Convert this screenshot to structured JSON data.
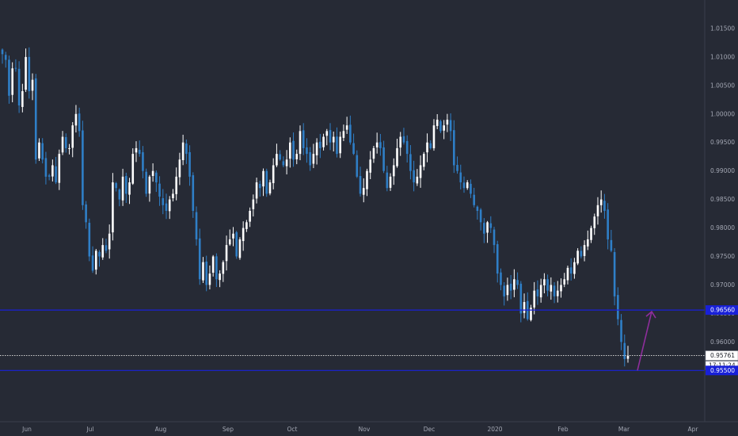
{
  "colors": {
    "background": "#262a35",
    "axis_text": "#a3a7b3",
    "candle_up": "#ffffff",
    "candle_down": "#2f7fc7",
    "level_line": "#1820d8",
    "level_label_bg": "#1820d8",
    "last_price_line": "#d0d0d0",
    "arrow": "#8e2e9c"
  },
  "chart_data": {
    "type": "candlestick",
    "title": "",
    "xlabel": "",
    "ylabel": "",
    "ylim": [
      0.946,
      1.02
    ],
    "y_ticks": [
      "0.95500",
      "0.96000",
      "0.96500",
      "0.97000",
      "0.97500",
      "0.98000",
      "0.98500",
      "0.99000",
      "0.99500",
      "1.00000",
      "1.00500",
      "1.01000",
      "1.01500"
    ],
    "x_ticks": [
      "Jun",
      "Jul",
      "Aug",
      "Sep",
      "Oct",
      "Nov",
      "Dec",
      "2020",
      "Feb",
      "Mar",
      "Apr"
    ],
    "grid": false,
    "series": [
      {
        "close_path": [
          1.0105,
          1.0095,
          1.0032,
          1.008,
          1.008,
          1.0015,
          1.004,
          1.01,
          1.004,
          1.006,
          0.992,
          0.995,
          0.992,
          0.989,
          0.989,
          0.991,
          0.988,
          0.993,
          0.996,
          0.994,
          0.994,
          0.998,
          1.0,
          0.997,
          0.984,
          0.981,
          0.975,
          0.9725,
          0.976,
          0.975,
          0.977,
          0.976,
          0.979,
          0.988,
          0.987,
          0.985,
          0.989,
          0.986,
          0.988,
          0.993,
          0.994,
          0.993,
          0.99,
          0.986,
          0.989,
          0.99,
          0.988,
          0.9855,
          0.984,
          0.983,
          0.985,
          0.986,
          0.989,
          0.992,
          0.995,
          0.993,
          0.989,
          0.983,
          0.978,
          0.971,
          0.974,
          0.97,
          0.972,
          0.975,
          0.971,
          0.972,
          0.974,
          0.977,
          0.978,
          0.979,
          0.975,
          0.978,
          0.98,
          0.981,
          0.983,
          0.985,
          0.988,
          0.987,
          0.99,
          0.986,
          0.988,
          0.991,
          0.993,
          0.992,
          0.991,
          0.992,
          0.995,
          0.992,
          0.993,
          0.997,
          0.994,
          0.993,
          0.991,
          0.993,
          0.995,
          0.994,
          0.996,
          0.997,
          0.995,
          0.996,
          0.993,
          0.996,
          0.997,
          0.998,
          0.995,
          0.993,
          0.989,
          0.986,
          0.987,
          0.99,
          0.992,
          0.994,
          0.995,
          0.994,
          0.99,
          0.987,
          0.989,
          0.991,
          0.994,
          0.996,
          0.995,
          0.993,
          0.99,
          0.988,
          0.989,
          0.991,
          0.993,
          0.995,
          0.994,
          0.998,
          0.999,
          0.997,
          0.998,
          0.999,
          0.997,
          0.991,
          0.99,
          0.988,
          0.987,
          0.988,
          0.986,
          0.984,
          0.983,
          0.981,
          0.979,
          0.981,
          0.98,
          0.977,
          0.972,
          0.97,
          0.968,
          0.97,
          0.969,
          0.971,
          0.97,
          0.965,
          0.967,
          0.964,
          0.966,
          0.969,
          0.968,
          0.97,
          0.971,
          0.969,
          0.97,
          0.968,
          0.969,
          0.97,
          0.971,
          0.973,
          0.972,
          0.974,
          0.976,
          0.975,
          0.977,
          0.978,
          0.98,
          0.982,
          0.984,
          0.985,
          0.983,
          0.978,
          0.976,
          0.968,
          0.964,
          0.96,
          0.957,
          0.9576
        ]
      }
    ],
    "levels": [
      0.9656,
      0.955
    ],
    "last_price": 0.95761,
    "countdown": "17:11:24",
    "arrow": {
      "from": [
        0.955,
        0.955
      ],
      "to": [
        0.965,
        0.9656
      ]
    }
  }
}
